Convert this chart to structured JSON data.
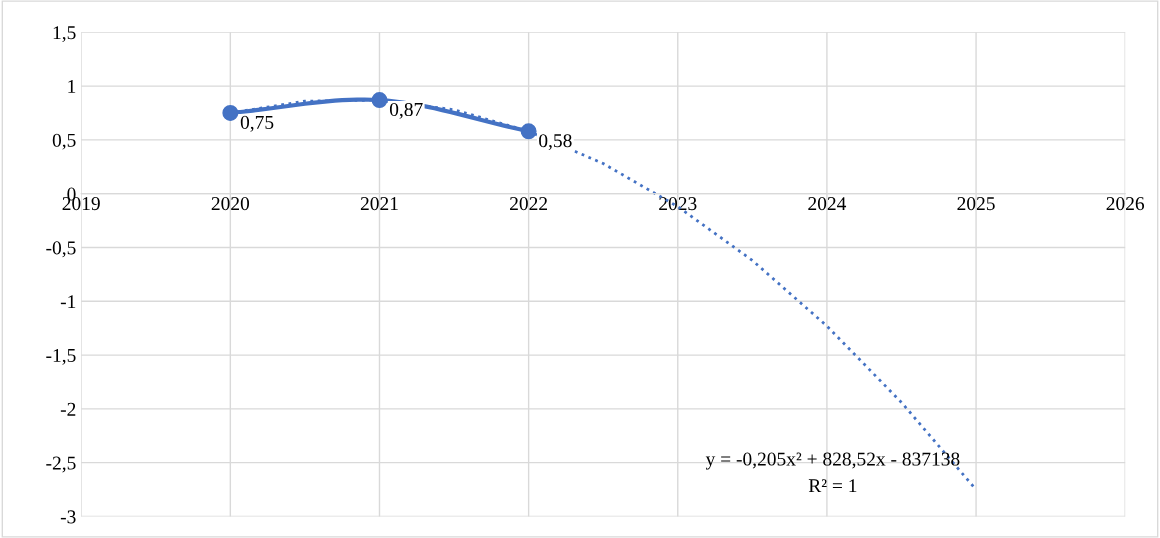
{
  "chart_data": {
    "type": "line",
    "series": [
      {
        "color": "#4472c4",
        "x": [
          2020,
          2021,
          2022
        ],
        "values": [
          0.75,
          0.87,
          0.58
        ],
        "value_labels": [
          "0,75",
          "0,87",
          "0,58"
        ],
        "marker": "circle",
        "line_style": "solid"
      },
      {
        "type": "line",
        "color": "#4472c4",
        "x": [
          2020,
          2020.5,
          2021,
          2021.5,
          2022,
          2022.5,
          2023,
          2023.5,
          2024,
          2024.5,
          2025
        ],
        "values": [
          0.75,
          0.86,
          0.87,
          0.78,
          0.58,
          0.28,
          -0.12,
          -0.62,
          -1.23,
          -1.94,
          -2.75
        ],
        "marker": "none",
        "line_style": "dotted"
      }
    ],
    "xlim": [
      2019,
      2026
    ],
    "xticks": [
      2019,
      2020,
      2021,
      2022,
      2023,
      2024,
      2025,
      2026
    ],
    "ylim": [
      -3,
      1.5
    ],
    "yticks": [
      {
        "value": -3,
        "label": "-3"
      },
      {
        "value": -2.5,
        "label": "-2,5"
      },
      {
        "value": -2,
        "label": "-2"
      },
      {
        "value": -1.5,
        "label": "-1,5"
      },
      {
        "value": -1,
        "label": "-1"
      },
      {
        "value": -0.5,
        "label": "-0,5"
      },
      {
        "value": 0,
        "label": "0"
      },
      {
        "value": 0.5,
        "label": "0,5"
      },
      {
        "value": 1,
        "label": "1"
      },
      {
        "value": 1.5,
        "label": "1,5"
      }
    ],
    "grid": true,
    "annotations": [
      "y = -0,205x² + 828,52x - 837138",
      "R² = 1"
    ]
  }
}
